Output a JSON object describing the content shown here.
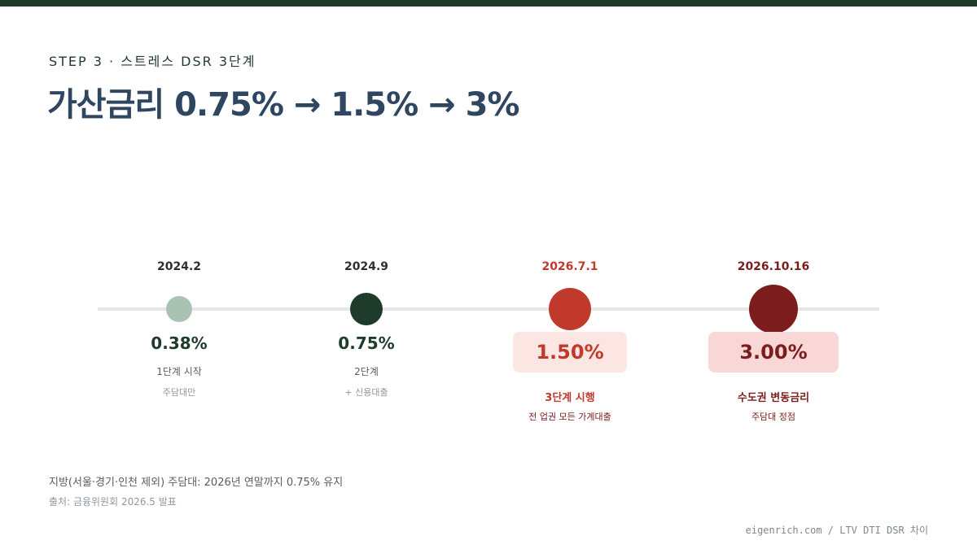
{
  "header": {
    "eyebrow": "STEP 3 · 스트레스 DSR 3단계",
    "title": "가산금리 0.75% → 1.5% → 3%"
  },
  "timeline": [
    {
      "date": "2024.2",
      "rate": "0.38%",
      "label": "1단계 시작",
      "sub": "주담대만",
      "date_color": "#2b2f33",
      "dot_color": "#a9c2b4",
      "rate_color": "#1f3b2c"
    },
    {
      "date": "2024.9",
      "rate": "0.75%",
      "label": "2단계",
      "sub": "+ 신용대출",
      "date_color": "#2b2f33",
      "dot_color": "#1f3b2c",
      "rate_color": "#1f3b2c"
    },
    {
      "date": "2026.7.1",
      "rate": "1.50%",
      "label": "3단계 시행",
      "sub": "전 업권 모든 가계대출",
      "date_color": "#c0392b",
      "dot_color": "#c0392b",
      "rate_color": "#c0392b",
      "box_color": "#fbe6e4"
    },
    {
      "date": "2026.10.16",
      "rate": "3.00%",
      "label": "수도권 변동금리",
      "sub": "주담대 정점",
      "date_color": "#7b1d1d",
      "dot_color": "#7b1d1d",
      "rate_color": "#7b1d1d",
      "box_color": "#f9d7d6"
    }
  ],
  "footnotes": {
    "note": "지방(서울·경기·인천 제외) 주담대: 2026년 연말까지 0.75% 유지",
    "source": "출처: 금융위원회 2026.5 발표"
  },
  "credit": "eigenrich.com / LTV DTI DSR 차이"
}
